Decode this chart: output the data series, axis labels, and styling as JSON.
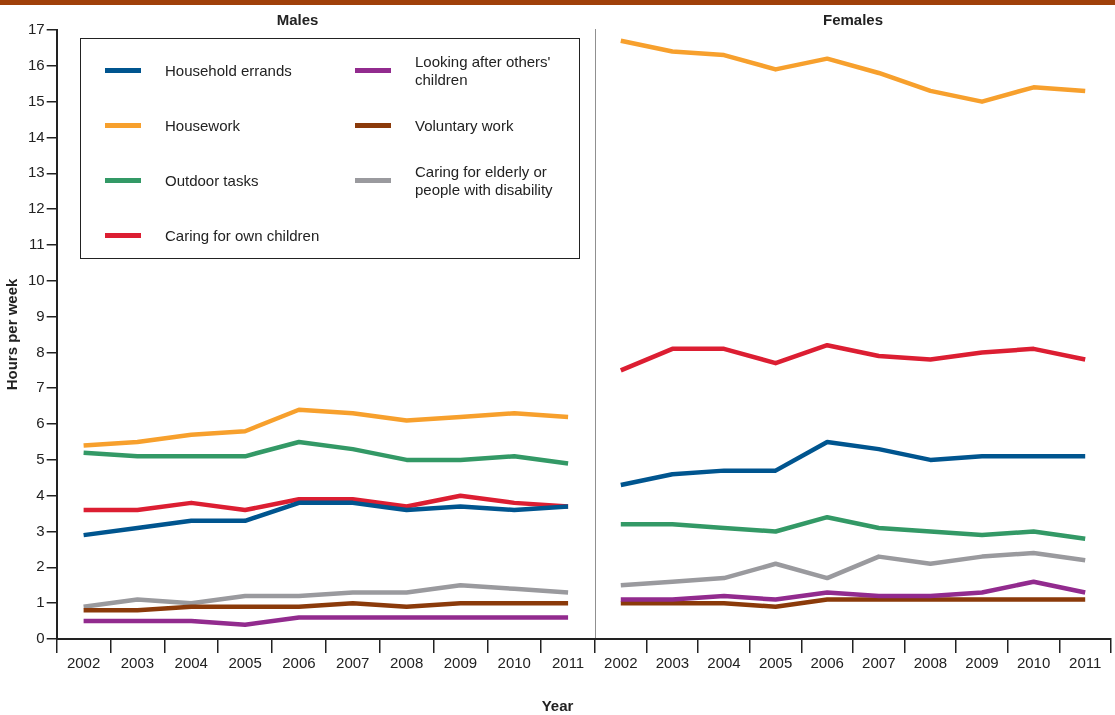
{
  "chart_data": [
    {
      "type": "line",
      "title": "Males",
      "xlabel": "Year",
      "ylabel": "Hours per week",
      "categories": [
        "2002",
        "2003",
        "2004",
        "2005",
        "2006",
        "2007",
        "2008",
        "2009",
        "2010",
        "2011"
      ],
      "ylim": [
        0,
        17
      ],
      "yticks": [
        0,
        1,
        2,
        3,
        4,
        5,
        6,
        7,
        8,
        9,
        10,
        11,
        12,
        13,
        14,
        15,
        16,
        17
      ],
      "legend": "top left",
      "marker": "none",
      "series": [
        {
          "name": "Household errands",
          "color": "#00558f",
          "values": [
            2.9,
            3.1,
            3.3,
            3.3,
            3.8,
            3.8,
            3.6,
            3.7,
            3.6,
            3.7
          ]
        },
        {
          "name": "Housework",
          "color": "#f7a02d",
          "values": [
            5.4,
            5.5,
            5.7,
            5.8,
            6.4,
            6.3,
            6.1,
            6.2,
            6.3,
            6.2
          ]
        },
        {
          "name": "Outdoor tasks",
          "color": "#339966",
          "values": [
            5.2,
            5.1,
            5.1,
            5.1,
            5.5,
            5.3,
            5.0,
            5.0,
            5.1,
            4.9
          ]
        },
        {
          "name": "Caring for own children",
          "color": "#dc1e32",
          "values": [
            3.6,
            3.6,
            3.8,
            3.6,
            3.9,
            3.9,
            3.7,
            4.0,
            3.8,
            3.7
          ]
        },
        {
          "name": "Looking after others' children",
          "color": "#922b8e",
          "values": [
            0.5,
            0.5,
            0.5,
            0.4,
            0.6,
            0.6,
            0.6,
            0.6,
            0.6,
            0.6
          ]
        },
        {
          "name": "Voluntary work",
          "color": "#8b3a0a",
          "values": [
            0.8,
            0.8,
            0.9,
            0.9,
            0.9,
            1.0,
            0.9,
            1.0,
            1.0,
            1.0
          ]
        },
        {
          "name": "Caring for elderly or people with disability",
          "color": "#9a9a9e",
          "values": [
            0.9,
            1.1,
            1.0,
            1.2,
            1.2,
            1.3,
            1.3,
            1.5,
            1.4,
            1.3
          ]
        }
      ]
    },
    {
      "type": "line",
      "title": "Females",
      "categories": [
        "2002",
        "2003",
        "2004",
        "2005",
        "2006",
        "2007",
        "2008",
        "2009",
        "2010",
        "2011"
      ],
      "ylim": [
        0,
        17
      ],
      "yticks": [
        0,
        1,
        2,
        3,
        4,
        5,
        6,
        7,
        8,
        9,
        10,
        11,
        12,
        13,
        14,
        15,
        16,
        17
      ],
      "tick_labels": "x",
      "marker": "none",
      "series": [
        {
          "color": "#00558f",
          "values": [
            4.3,
            4.6,
            4.7,
            4.7,
            5.5,
            5.3,
            5.0,
            5.1,
            5.1,
            5.1
          ]
        },
        {
          "color": "#f7a02d",
          "values": [
            16.7,
            16.4,
            16.3,
            15.9,
            16.2,
            15.8,
            15.3,
            15.0,
            15.4,
            15.3
          ]
        },
        {
          "color": "#339966",
          "values": [
            3.2,
            3.2,
            3.1,
            3.0,
            3.4,
            3.1,
            3.0,
            2.9,
            3.0,
            2.8
          ]
        },
        {
          "color": "#dc1e32",
          "values": [
            7.5,
            8.1,
            8.1,
            7.7,
            8.2,
            7.9,
            7.8,
            8.0,
            8.1,
            7.8
          ]
        },
        {
          "color": "#922b8e",
          "values": [
            1.1,
            1.1,
            1.2,
            1.1,
            1.3,
            1.2,
            1.2,
            1.3,
            1.6,
            1.3
          ]
        },
        {
          "color": "#8b3a0a",
          "values": [
            1.0,
            1.0,
            1.0,
            0.9,
            1.1,
            1.1,
            1.1,
            1.1,
            1.1,
            1.1
          ]
        },
        {
          "color": "#9a9a9e",
          "values": [
            1.5,
            1.6,
            1.7,
            2.1,
            1.7,
            2.3,
            2.1,
            2.3,
            2.4,
            2.2
          ]
        }
      ]
    }
  ]
}
